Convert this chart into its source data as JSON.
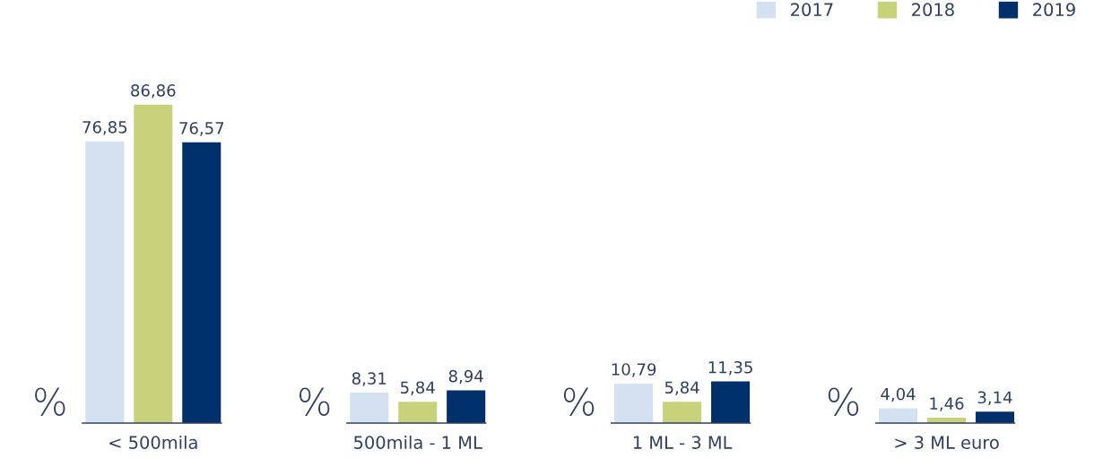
{
  "chart_data": {
    "type": "bar",
    "categories": [
      "< 500mila",
      "500mila - 1 ML",
      "1 ML - 3 ML",
      "> 3 ML euro"
    ],
    "series": [
      {
        "name": "2017",
        "color": "#d3e1f1",
        "values": [
          76.85,
          8.31,
          10.79,
          4.04
        ],
        "value_labels": [
          "76,85",
          "8,31",
          "10,79",
          "4,04"
        ]
      },
      {
        "name": "2018",
        "color": "#c8d27a",
        "values": [
          86.86,
          5.84,
          5.84,
          1.46
        ],
        "value_labels": [
          "86,86",
          "5,84",
          "5,84",
          "1,46"
        ]
      },
      {
        "name": "2019",
        "color": "#00306a",
        "values": [
          76.57,
          8.94,
          11.35,
          3.14
        ],
        "value_labels": [
          "76,57",
          "8,94",
          "11,35",
          "3,14"
        ]
      }
    ],
    "annotations": [
      "%",
      "%",
      "%",
      "%"
    ],
    "tick_labels": "x",
    "grid": false,
    "legend": "top right"
  }
}
